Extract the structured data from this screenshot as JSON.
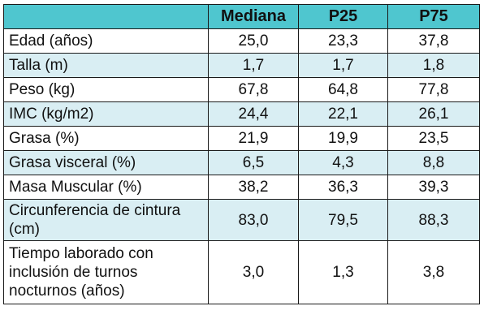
{
  "table": {
    "headers": [
      "",
      "Mediana",
      "P25",
      "P75"
    ],
    "rows": [
      {
        "label": "Edad (años)",
        "mediana": "25,0",
        "p25": "23,3",
        "p75": "37,8"
      },
      {
        "label": "Talla (m)",
        "mediana": "1,7",
        "p25": "1,7",
        "p75": "1,8"
      },
      {
        "label": "Peso (kg)",
        "mediana": "67,8",
        "p25": "64,8",
        "p75": "77,8"
      },
      {
        "label": "IMC (kg/m2)",
        "mediana": "24,4",
        "p25": "22,1",
        "p75": "26,1"
      },
      {
        "label": "Grasa (%)",
        "mediana": "21,9",
        "p25": "19,9",
        "p75": "23,5"
      },
      {
        "label": "Grasa visceral (%)",
        "mediana": "6,5",
        "p25": "4,3",
        "p75": "8,8"
      },
      {
        "label": "Masa Muscular (%)",
        "mediana": "38,2",
        "p25": "36,3",
        "p75": "39,3"
      },
      {
        "label": "Circunferencia de cintura (cm)",
        "mediana": "83,0",
        "p25": "79,5",
        "p75": "88,3"
      },
      {
        "label": "Tiempo laborado con inclusión de turnos nocturnos (años)",
        "mediana": "3,0",
        "p25": "1,3",
        "p75": "3,8"
      }
    ]
  },
  "colors": {
    "header_bg": "#4fc6cf",
    "alt_row_bg": "#d9eef3",
    "row_bg": "#ffffff",
    "border": "#1a1a1a"
  }
}
